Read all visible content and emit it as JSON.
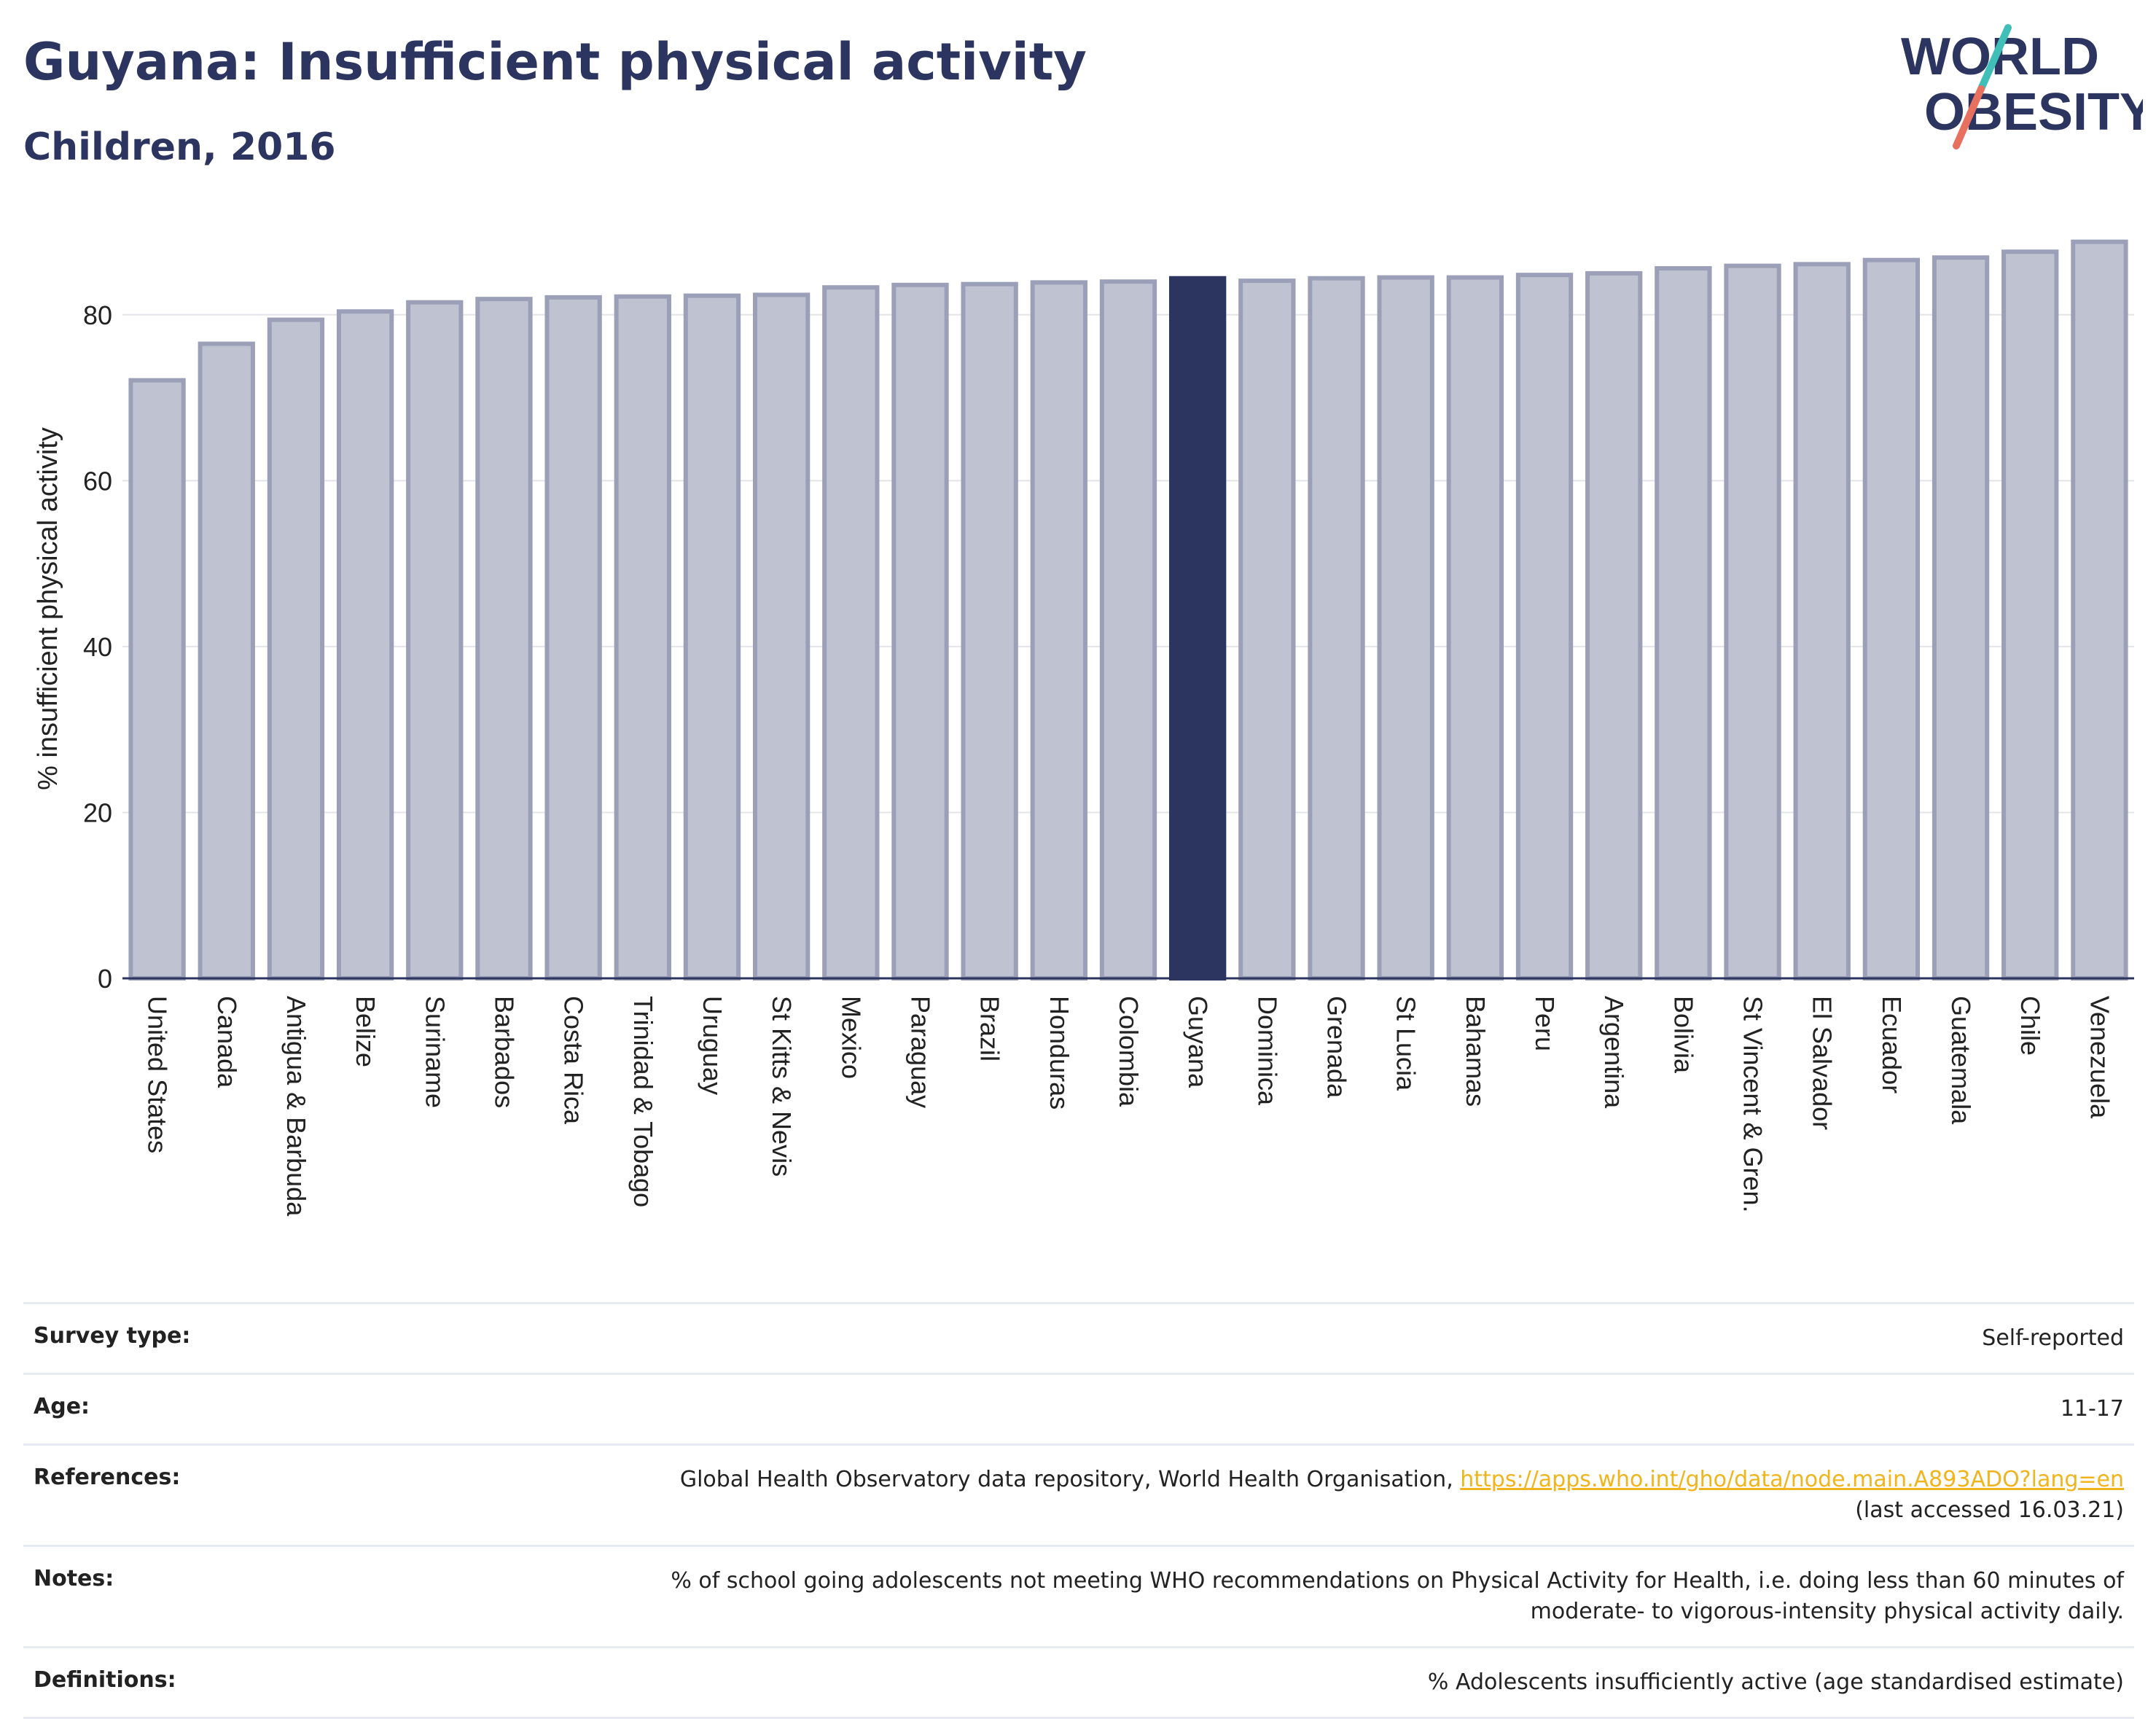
{
  "header": {
    "title": "Guyana: Insufficient physical activity",
    "subtitle": "Children, 2016"
  },
  "logo": {
    "line1": "WORLD",
    "line2": "OBESITY"
  },
  "colors": {
    "highlight": "#2b3560",
    "bar_fill": "#bfc2d1",
    "bar_stroke": "#9ba0b8",
    "link": "#f0b41c",
    "logo_teal": "#3fbfb8",
    "logo_coral": "#e8705f"
  },
  "chart_data": {
    "type": "bar",
    "title": "Guyana: Insufficient physical activity",
    "subtitle": "Children, 2016",
    "xlabel": "",
    "ylabel": "% insufficient physical activity",
    "ylim": [
      0,
      90
    ],
    "yticks": [
      0,
      20,
      40,
      60,
      80
    ],
    "grid": true,
    "highlight": "Guyana",
    "categories": [
      "United States",
      "Canada",
      "Antigua & Barbuda",
      "Belize",
      "Suriname",
      "Barbados",
      "Costa Rica",
      "Trinidad & Tobago",
      "Uruguay",
      "St Kitts & Nevis",
      "Mexico",
      "Paraguay",
      "Brazil",
      "Honduras",
      "Colombia",
      "Guyana",
      "Dominica",
      "Grenada",
      "St Lucia",
      "Bahamas",
      "Peru",
      "Argentina",
      "Bolivia",
      "St Vincent & Gren.",
      "El Salvador",
      "Ecuador",
      "Guatemala",
      "Chile",
      "Venezuela"
    ],
    "values": [
      72.1,
      76.5,
      79.4,
      80.4,
      81.5,
      81.9,
      82.1,
      82.2,
      82.3,
      82.4,
      83.3,
      83.6,
      83.7,
      83.9,
      84.0,
      84.4,
      84.1,
      84.4,
      84.5,
      84.5,
      84.8,
      85.0,
      85.6,
      85.9,
      86.1,
      86.6,
      86.9,
      87.6,
      88.8
    ]
  },
  "info": {
    "rows": [
      {
        "label": "Survey type:",
        "value": "Self-reported"
      },
      {
        "label": "Age:",
        "value": "11-17"
      },
      {
        "label": "References:",
        "value_prefix": "Global Health Observatory data repository, World Health Organisation, ",
        "link": "https://apps.who.int/gho/data/node.main.A893ADO?lang=en",
        "value_suffix": "(last accessed 16.03.21)"
      },
      {
        "label": "Notes:",
        "value_line1": "% of school going adolescents not meeting WHO recommendations on Physical Activity for Health, i.e. doing less than 60 minutes of",
        "value_line2": "moderate- to vigorous-intensity physical activity daily."
      },
      {
        "label": "Definitions:",
        "value": "% Adolescents insufficiently active (age standardised estimate)"
      }
    ]
  }
}
